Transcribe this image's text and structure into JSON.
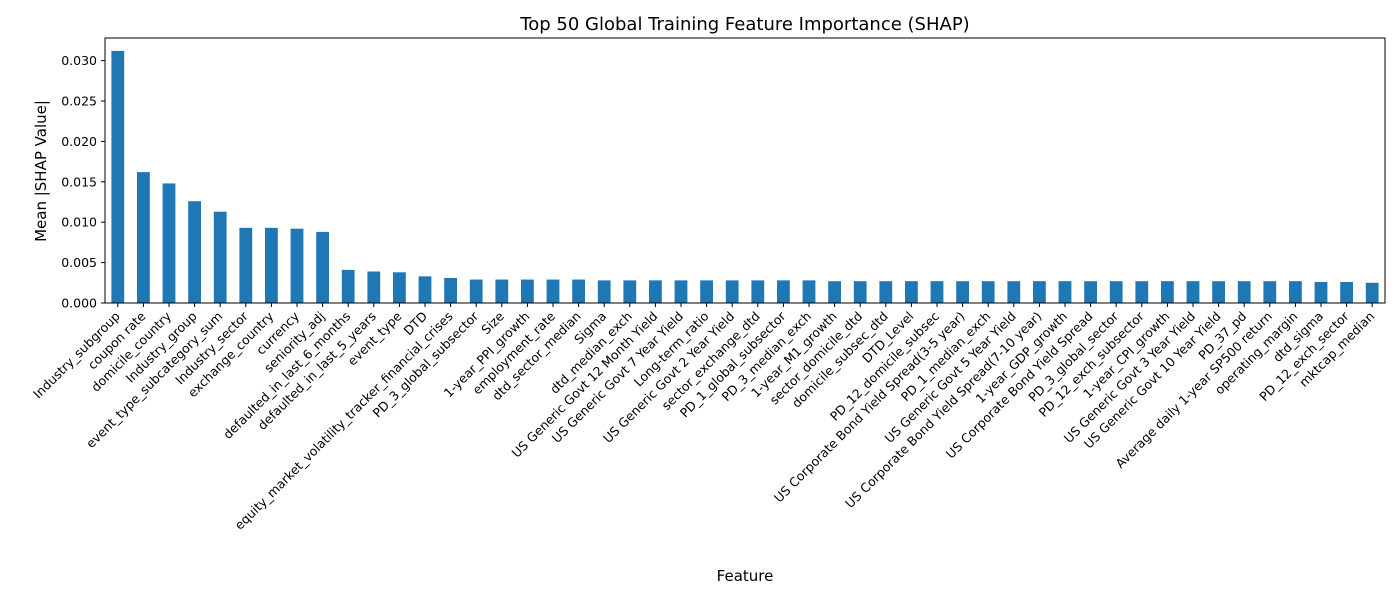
{
  "chart_data": {
    "type": "bar",
    "title": "Top 50 Global Training Feature Importance (SHAP)",
    "xlabel": "Feature",
    "ylabel": "Mean |SHAP Value|",
    "ylim": [
      0,
      0.0328
    ],
    "yticks": [
      "0.000",
      "0.005",
      "0.010",
      "0.015",
      "0.020",
      "0.025",
      "0.030"
    ],
    "ytick_values": [
      0,
      0.005,
      0.01,
      0.015,
      0.02,
      0.025,
      0.03
    ],
    "grid": false,
    "legend": "none",
    "bar_color": "#1f77b4",
    "categories": [
      "Industry_subgroup",
      "coupon rate",
      "domicile_country",
      "Industry_group",
      "event_type_subcategory_sum",
      "Industry_sector",
      "exchange_country",
      "currency",
      "seniority_adj",
      "defaulted_in_last_6_months",
      "defaulted_in_last_5_years",
      "event_type",
      "DTD",
      "equity_market_volatility_tracker_financial_crises",
      "PD_3_global_subsector",
      "Size",
      "1-year_PPI_growth",
      "employment_rate",
      "dtd_sector_median",
      "Sigma",
      "dtd_median_exch",
      "US Generic Govt 12 Month Yield",
      "US Generic Govt 7 Year Yield",
      "Long-term_ratio",
      "US Generic Govt 2 Year Yield",
      "sector_exchange_dtd",
      "PD_1_global_subsector",
      "PD_3_median_exch",
      "1-year_M1_growth",
      "sector_domicile_dtd",
      "domicile_subsec_dtd",
      "DTD_Level",
      "PD_12_domicile_subsec",
      "US Corporate Bond Yield Spread(3-5 year)",
      "PD_1_median_exch",
      "US Generic Govt 5 Year Yield",
      "US Corporate Bond Yield Spread(7-10 year)",
      "1-year_GDP_growth",
      "US Corporate Bond Yield Spread",
      "PD_3_global_sector",
      "PD_12_exch_subsector",
      "1-year_CPI_growth",
      "US Generic Govt 3 Year Yield",
      "US Generic Govt 10 Year Yield",
      "PD_37_pd",
      "Average daily 1-year SP500 return",
      "operating_margin",
      "dtd_sigma",
      "PD_12_exch_sector",
      "mktcap_median"
    ],
    "values": [
      0.0312,
      0.0162,
      0.0148,
      0.0126,
      0.0113,
      0.0093,
      0.0093,
      0.0092,
      0.0088,
      0.0041,
      0.0039,
      0.0038,
      0.0033,
      0.0031,
      0.0029,
      0.0029,
      0.0029,
      0.0029,
      0.0029,
      0.0028,
      0.0028,
      0.0028,
      0.0028,
      0.0028,
      0.0028,
      0.0028,
      0.0028,
      0.0028,
      0.0027,
      0.0027,
      0.0027,
      0.0027,
      0.0027,
      0.0027,
      0.0027,
      0.0027,
      0.0027,
      0.0027,
      0.0027,
      0.0027,
      0.0027,
      0.0027,
      0.0027,
      0.0027,
      0.0027,
      0.0027,
      0.0027,
      0.0026,
      0.0026,
      0.0025
    ]
  }
}
